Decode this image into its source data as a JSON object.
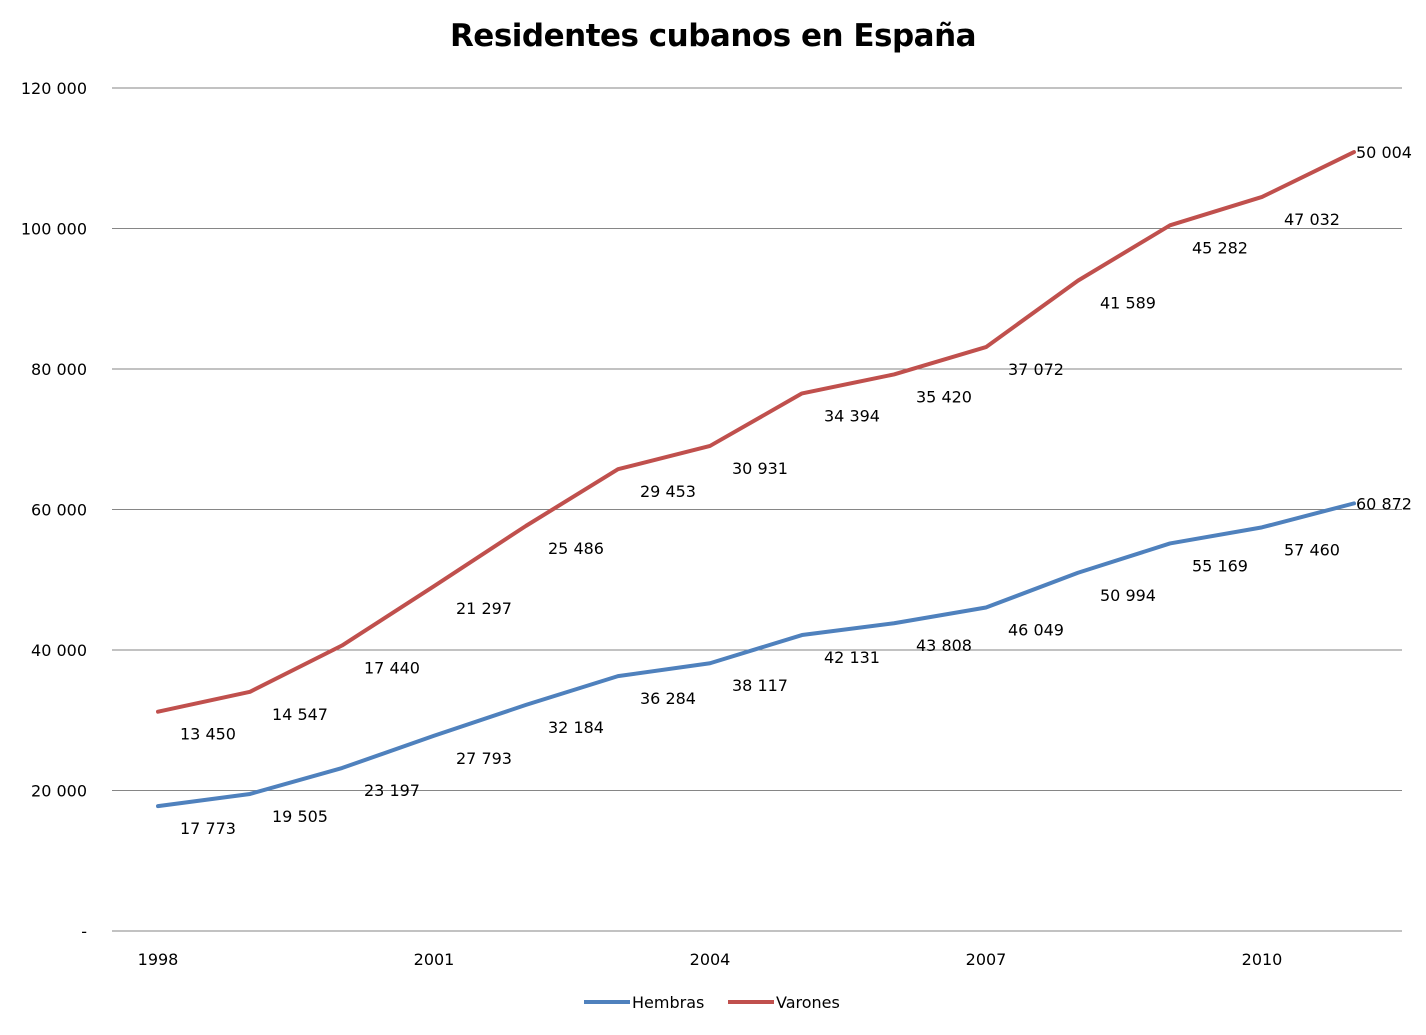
{
  "chart_data": {
    "type": "line",
    "title": "Residentes cubanos en España",
    "xlabel": "",
    "ylabel": "",
    "x": [
      1998,
      1999,
      2000,
      2001,
      2002,
      2003,
      2004,
      2005,
      2006,
      2007,
      2008,
      2009,
      2010,
      2011
    ],
    "x_tick_labels": [
      "1998",
      "2001",
      "2004",
      "2007",
      "2010"
    ],
    "y_tick_labels": [
      "-",
      "20 000",
      "40 000",
      "60 000",
      "80 000",
      "100 000",
      "120 000"
    ],
    "ylim": [
      0,
      120000
    ],
    "stacked": true,
    "grid": "horizontal",
    "legend_position": "bottom",
    "series": [
      {
        "name": "Hembras",
        "color": "#4F81BD",
        "values": [
          17773,
          19505,
          23197,
          27793,
          32184,
          36284,
          38117,
          42131,
          43808,
          46049,
          50994,
          55169,
          57460,
          60872
        ],
        "labels": [
          "17 773",
          "19 505",
          "23 197",
          "27 793",
          "32 184",
          "36 284",
          "38 117",
          "42 131",
          "43 808",
          "46 049",
          "50 994",
          "55 169",
          "57 460",
          "60 872"
        ]
      },
      {
        "name": "Varones",
        "color": "#C0504D",
        "values": [
          13450,
          14547,
          17440,
          21297,
          25486,
          29453,
          30931,
          34394,
          35420,
          37072,
          41589,
          45282,
          47032,
          50004
        ],
        "labels": [
          "13 450",
          "14 547",
          "17 440",
          "21 297",
          "25 486",
          "29 453",
          "30 931",
          "34 394",
          "35 420",
          "37 072",
          "41 589",
          "45 282",
          "47 032",
          "50 004"
        ]
      }
    ]
  }
}
